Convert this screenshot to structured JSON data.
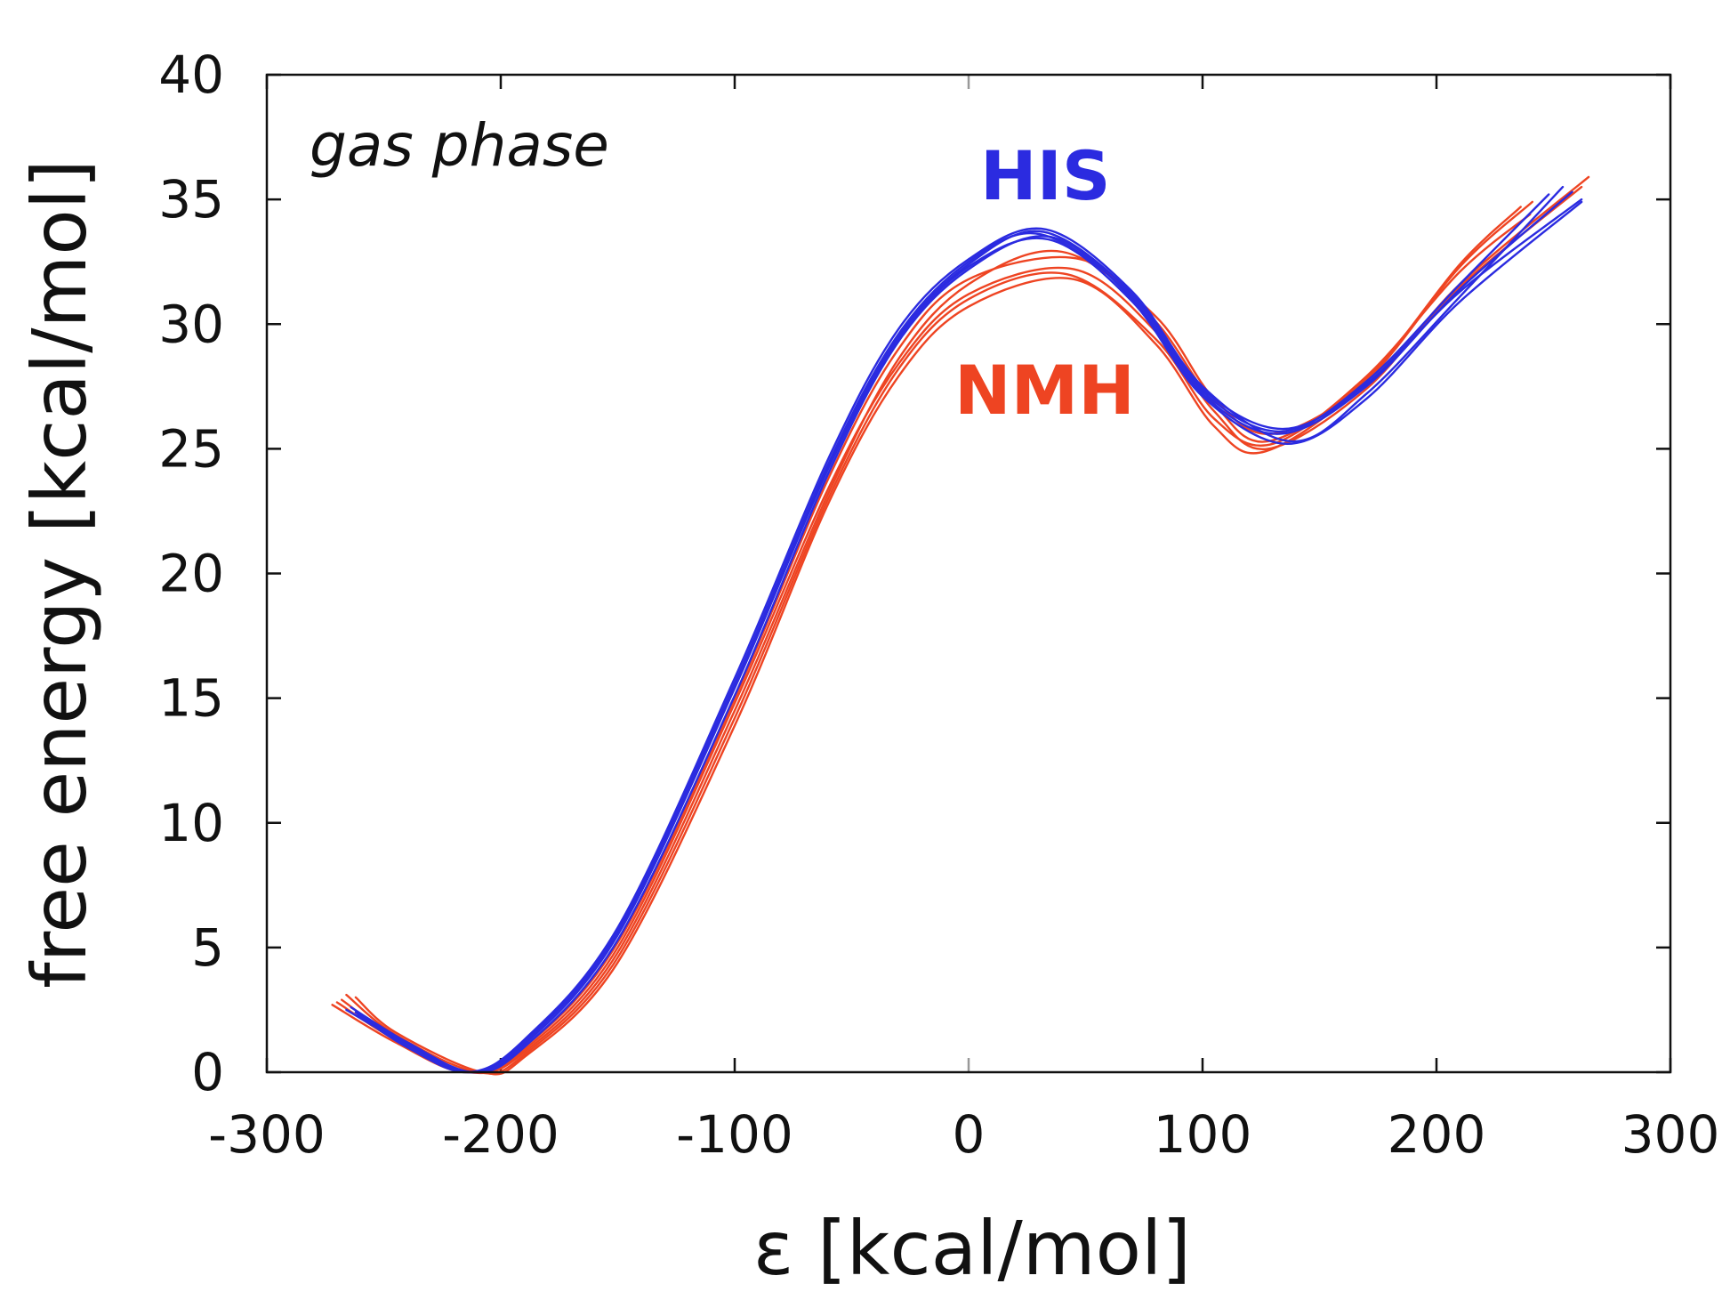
{
  "chart_data": {
    "type": "line",
    "title": "",
    "xlabel": "ε [kcal/mol]",
    "ylabel": "free energy [kcal/mol]",
    "xlim": [
      -300,
      300
    ],
    "ylim": [
      0,
      40
    ],
    "xticks": [
      -300,
      -200,
      -100,
      0,
      100,
      200,
      300
    ],
    "yticks": [
      0,
      5,
      10,
      15,
      20,
      25,
      30,
      35,
      40
    ],
    "xtick_labels": [
      "-300",
      "-200",
      "-100",
      "0",
      "100",
      "200",
      "300"
    ],
    "ytick_labels": [
      "0",
      "5",
      "10",
      "15",
      "20",
      "25",
      "30",
      "35",
      "40"
    ],
    "grid": false,
    "annotations": {
      "condition": "gas phase",
      "his_label": "HIS",
      "nmh_label": "NMH"
    },
    "colors": {
      "HIS": "#2b2be0",
      "NMH": "#ee4422",
      "axis": "#111111",
      "zero_tick": "#999999"
    },
    "series": [
      {
        "name": "HIS",
        "x": [
          -262,
          -240,
          -213,
          -190,
          -150,
          -100,
          -60,
          -30,
          0,
          32,
          70,
          100,
          135,
          170,
          210,
          262
        ],
        "values": [
          2.4,
          1.1,
          0.0,
          1.2,
          5.6,
          15.5,
          24.3,
          29.5,
          32.4,
          33.7,
          31.2,
          27.4,
          25.8,
          27.6,
          31.3,
          35.0
        ]
      },
      {
        "name": "HIS",
        "x": [
          -264,
          -240,
          -212,
          -190,
          -150,
          -100,
          -60,
          -30,
          0,
          35,
          70,
          100,
          133,
          170,
          210,
          258
        ],
        "values": [
          2.6,
          1.2,
          0.0,
          1.0,
          5.3,
          15.1,
          24.0,
          29.3,
          32.2,
          33.5,
          31.0,
          27.2,
          25.6,
          27.5,
          31.4,
          35.3
        ]
      },
      {
        "name": "HIS",
        "x": [
          -261,
          -240,
          -214,
          -190,
          -150,
          -100,
          -60,
          -30,
          0,
          33,
          70,
          100,
          138,
          170,
          210,
          254
        ],
        "values": [
          2.3,
          1.0,
          0.0,
          1.3,
          5.8,
          15.8,
          24.6,
          29.8,
          32.6,
          33.8,
          31.3,
          27.5,
          25.3,
          27.2,
          31.1,
          35.5
        ]
      },
      {
        "name": "HIS",
        "x": [
          -266,
          -240,
          -213,
          -190,
          -150,
          -100,
          -60,
          -30,
          0,
          34,
          70,
          100,
          136,
          170,
          210,
          262
        ],
        "values": [
          2.5,
          1.1,
          0.0,
          1.1,
          5.5,
          15.4,
          24.2,
          29.4,
          32.3,
          33.4,
          30.9,
          27.1,
          25.2,
          27.0,
          30.9,
          34.9
        ]
      },
      {
        "name": "HIS",
        "x": [
          -259,
          -240,
          -212,
          -190,
          -150,
          -100,
          -60,
          -30,
          0,
          31,
          70,
          100,
          134,
          170,
          210,
          248
        ],
        "values": [
          2.2,
          1.2,
          0.0,
          1.2,
          5.7,
          15.6,
          24.4,
          29.6,
          32.5,
          33.6,
          31.1,
          27.3,
          25.7,
          27.7,
          31.6,
          35.2
        ]
      },
      {
        "name": "NMH",
        "x": [
          -270,
          -245,
          -214,
          -190,
          -150,
          -100,
          -60,
          -30,
          0,
          45,
          80,
          105,
          128,
          170,
          210,
          265
        ],
        "values": [
          2.8,
          1.3,
          0.0,
          0.9,
          5.0,
          14.8,
          23.4,
          28.4,
          31.2,
          32.2,
          29.7,
          26.5,
          25.0,
          27.4,
          31.6,
          35.9
        ]
      },
      {
        "name": "NMH",
        "x": [
          -266,
          -245,
          -210,
          -190,
          -150,
          -100,
          -60,
          -30,
          0,
          42,
          80,
          105,
          130,
          170,
          210,
          240
        ],
        "values": [
          3.1,
          1.5,
          0.0,
          0.7,
          4.6,
          14.2,
          23.0,
          28.2,
          31.0,
          32.0,
          29.4,
          26.2,
          25.2,
          27.9,
          32.1,
          34.4
        ]
      },
      {
        "name": "NMH",
        "x": [
          -272,
          -245,
          -215,
          -190,
          -150,
          -100,
          -60,
          -30,
          0,
          48,
          80,
          105,
          128,
          170,
          210,
          236
        ],
        "values": [
          2.7,
          1.2,
          0.0,
          1.0,
          5.2,
          15.0,
          23.8,
          29.0,
          31.8,
          32.6,
          30.1,
          26.8,
          25.3,
          27.8,
          32.4,
          34.7
        ]
      },
      {
        "name": "NMH",
        "x": [
          -268,
          -245,
          -213,
          -190,
          -150,
          -100,
          -60,
          -30,
          0,
          40,
          80,
          105,
          130,
          170,
          210,
          262
        ],
        "values": [
          2.9,
          1.4,
          0.0,
          0.8,
          4.8,
          14.5,
          23.2,
          28.6,
          31.6,
          32.9,
          30.3,
          27.0,
          25.6,
          27.6,
          31.5,
          35.5
        ]
      },
      {
        "name": "NMH",
        "x": [
          -262,
          -245,
          -208,
          -190,
          -150,
          -100,
          -60,
          -30,
          0,
          45,
          80,
          105,
          127,
          170,
          210,
          241
        ],
        "values": [
          3.0,
          1.6,
          0.0,
          0.6,
          4.4,
          13.9,
          22.8,
          27.9,
          30.7,
          31.8,
          29.2,
          25.9,
          24.9,
          27.7,
          32.3,
          34.9
        ]
      }
    ]
  }
}
